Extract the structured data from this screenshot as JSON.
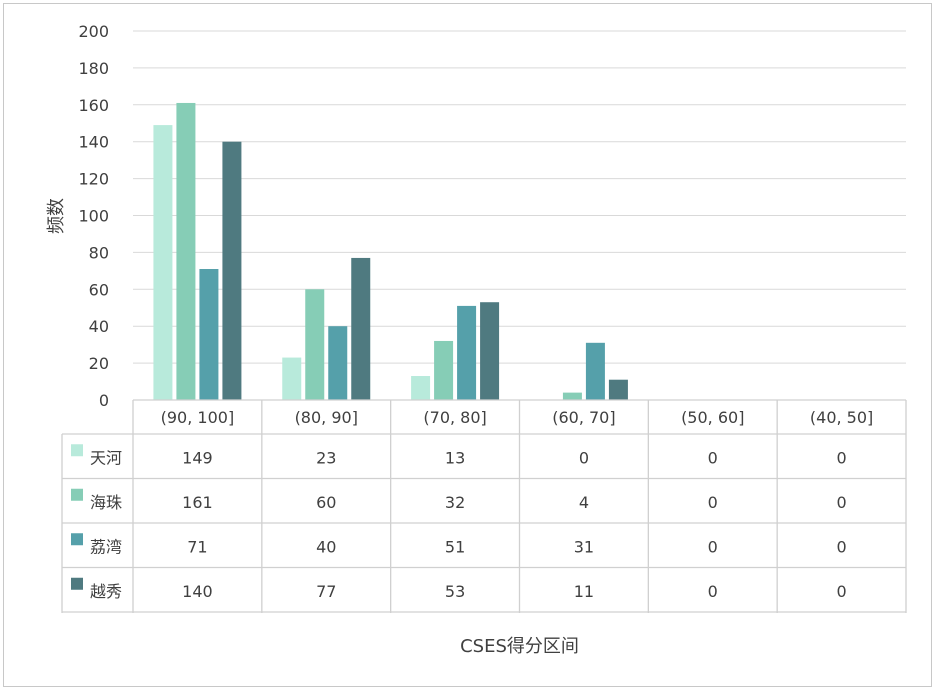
{
  "chart_data": {
    "type": "bar",
    "title": "",
    "xlabel": "CSES得分区间",
    "ylabel": "频数",
    "ylim": [
      0,
      200
    ],
    "yticks": [
      0,
      20,
      40,
      60,
      80,
      100,
      120,
      140,
      160,
      180,
      200
    ],
    "grid": true,
    "legend": "data-table",
    "categories": [
      "(90, 100]",
      "(80, 90]",
      "(70, 80]",
      "(60, 70]",
      "(50, 60]",
      "(40, 50]"
    ],
    "series": [
      {
        "name": "天河",
        "values": [
          149,
          23,
          13,
          0,
          0,
          0
        ],
        "color": "#b8eadb"
      },
      {
        "name": "海珠",
        "values": [
          161,
          60,
          32,
          4,
          0,
          0
        ],
        "color": "#86cdb6"
      },
      {
        "name": "荔湾",
        "values": [
          71,
          40,
          51,
          31,
          0,
          0
        ],
        "color": "#55a0aa"
      },
      {
        "name": "越秀",
        "values": [
          140,
          77,
          53,
          11,
          0,
          0
        ],
        "color": "#4f7a80"
      }
    ]
  }
}
